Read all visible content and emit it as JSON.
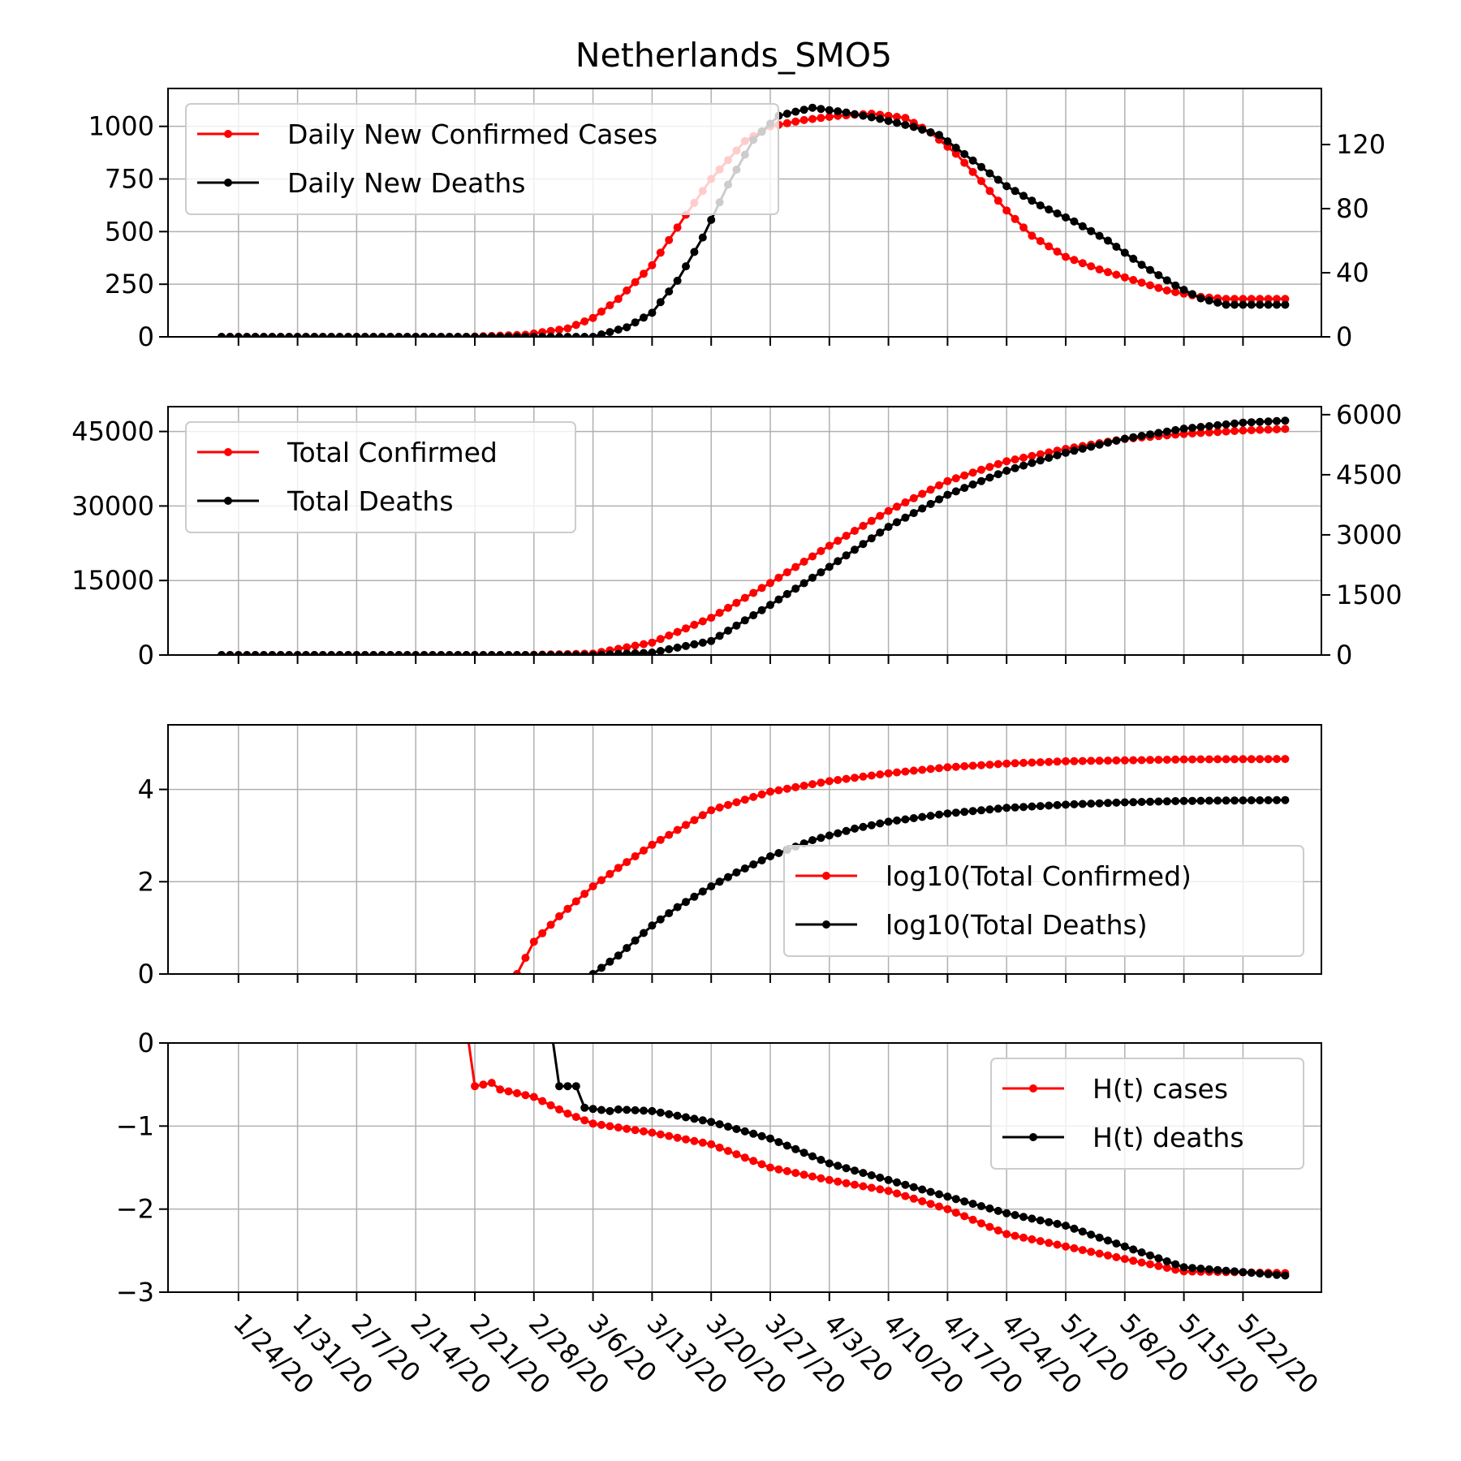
{
  "title": "Netherlands_SMO5",
  "colors": {
    "confirmed": "#ff0000",
    "deaths": "#000000",
    "grid": "#b0b0b0"
  },
  "x_axis": {
    "start_date": "1/22/20",
    "end_date": "5/27/20",
    "tick_labels": [
      "1/24/20",
      "1/31/20",
      "2/7/20",
      "2/14/20",
      "2/21/20",
      "2/28/20",
      "3/6/20",
      "3/13/20",
      "3/20/20",
      "3/27/20",
      "4/3/20",
      "4/10/20",
      "4/17/20",
      "4/24/20",
      "5/1/20",
      "5/8/20",
      "5/15/20",
      "5/22/20"
    ]
  },
  "chart_data": [
    {
      "type": "line",
      "panel": "daily",
      "legend": [
        "Daily New Confirmed Cases",
        "Daily New Deaths"
      ],
      "legend_position": "top-left",
      "grid": true,
      "y_left": {
        "range": [
          0,
          1180
        ],
        "ticks": [
          0,
          250,
          500,
          750,
          1000
        ],
        "tick_labels": [
          "0",
          "250",
          "500",
          "750",
          "1000"
        ]
      },
      "y_right": {
        "range": [
          0,
          155
        ],
        "ticks": [
          0,
          40,
          80,
          120
        ],
        "tick_labels": [
          "0",
          "40",
          "80",
          "120"
        ]
      },
      "series": [
        {
          "name": "Daily New Confirmed Cases",
          "axis": "left",
          "color": "#ff0000",
          "points": [
            [
              "1/22/20",
              0
            ],
            [
              "2/20/20",
              0
            ],
            [
              "2/27/20",
              10
            ],
            [
              "3/3/20",
              40
            ],
            [
              "3/6/20",
              90
            ],
            [
              "3/9/20",
              180
            ],
            [
              "3/13/20",
              340
            ],
            [
              "3/17/20",
              580
            ],
            [
              "3/20/20",
              750
            ],
            [
              "3/24/20",
              930
            ],
            [
              "3/27/20",
              1000
            ],
            [
              "3/31/20",
              1030
            ],
            [
              "4/4/20",
              1050
            ],
            [
              "4/8/20",
              1060
            ],
            [
              "4/12/20",
              1040
            ],
            [
              "4/15/20",
              970
            ],
            [
              "4/18/20",
              870
            ],
            [
              "4/21/20",
              740
            ],
            [
              "4/24/20",
              600
            ],
            [
              "4/27/20",
              480
            ],
            [
              "5/1/20",
              380
            ],
            [
              "5/5/20",
              320
            ],
            [
              "5/9/20",
              270
            ],
            [
              "5/13/20",
              220
            ],
            [
              "5/17/20",
              190
            ],
            [
              "5/20/20",
              180
            ],
            [
              "5/27/20",
              180
            ]
          ]
        },
        {
          "name": "Daily New Deaths",
          "axis": "right",
          "color": "#000000",
          "points": [
            [
              "1/22/20",
              0
            ],
            [
              "3/6/20",
              0
            ],
            [
              "3/10/20",
              6
            ],
            [
              "3/13/20",
              15
            ],
            [
              "3/16/20",
              35
            ],
            [
              "3/19/20",
              62
            ],
            [
              "3/22/20",
              95
            ],
            [
              "3/25/20",
              123
            ],
            [
              "3/28/20",
              138
            ],
            [
              "4/1/20",
              143
            ],
            [
              "4/5/20",
              140
            ],
            [
              "4/9/20",
              136
            ],
            [
              "4/13/20",
              131
            ],
            [
              "4/16/20",
              126
            ],
            [
              "4/20/20",
              110
            ],
            [
              "4/24/20",
              94
            ],
            [
              "4/28/20",
              82
            ],
            [
              "5/2/20",
              72
            ],
            [
              "5/6/20",
              60
            ],
            [
              "5/10/20",
              45
            ],
            [
              "5/14/20",
              32
            ],
            [
              "5/17/20",
              24
            ],
            [
              "5/20/20",
              20
            ],
            [
              "5/27/20",
              20
            ]
          ]
        }
      ]
    },
    {
      "type": "line",
      "panel": "total",
      "legend": [
        "Total Confirmed",
        "Total Deaths"
      ],
      "legend_position": "top-left",
      "grid": true,
      "y_left": {
        "range": [
          0,
          50000
        ],
        "ticks": [
          0,
          15000,
          30000,
          45000
        ],
        "tick_labels": [
          "0",
          "15000",
          "30000",
          "45000"
        ]
      },
      "y_right": {
        "range": [
          0,
          6200
        ],
        "ticks": [
          0,
          1500,
          3000,
          4500,
          6000
        ],
        "tick_labels": [
          "0",
          "1500",
          "3000",
          "4500",
          "6000"
        ]
      },
      "series": [
        {
          "name": "Total Confirmed",
          "axis": "left",
          "color": "#ff0000",
          "points": [
            [
              "1/22/20",
              0
            ],
            [
              "2/27/20",
              0
            ],
            [
              "3/6/20",
              300
            ],
            [
              "3/13/20",
              2500
            ],
            [
              "3/20/20",
              7500
            ],
            [
              "3/27/20",
              14500
            ],
            [
              "4/3/20",
              22000
            ],
            [
              "4/10/20",
              29000
            ],
            [
              "4/17/20",
              35000
            ],
            [
              "4/24/20",
              39000
            ],
            [
              "5/1/20",
              41500
            ],
            [
              "5/8/20",
              43500
            ],
            [
              "5/15/20",
              44500
            ],
            [
              "5/22/20",
              45200
            ],
            [
              "5/27/20",
              45500
            ]
          ]
        },
        {
          "name": "Total Deaths",
          "axis": "right",
          "color": "#000000",
          "points": [
            [
              "1/22/20",
              0
            ],
            [
              "3/6/20",
              0
            ],
            [
              "3/13/20",
              60
            ],
            [
              "3/20/20",
              350
            ],
            [
              "3/27/20",
              1250
            ],
            [
              "4/3/20",
              2200
            ],
            [
              "4/10/20",
              3200
            ],
            [
              "4/17/20",
              4000
            ],
            [
              "4/24/20",
              4600
            ],
            [
              "5/1/20",
              5050
            ],
            [
              "5/8/20",
              5400
            ],
            [
              "5/15/20",
              5650
            ],
            [
              "5/22/20",
              5800
            ],
            [
              "5/27/20",
              5850
            ]
          ]
        }
      ]
    },
    {
      "type": "line",
      "panel": "log",
      "legend": [
        "log10(Total Confirmed)",
        "log10(Total Deaths)"
      ],
      "legend_position": "lower-right",
      "grid": true,
      "y_left": {
        "range": [
          0,
          5.4
        ],
        "ticks": [
          0,
          2,
          4
        ],
        "tick_labels": [
          "0",
          "2",
          "4"
        ]
      },
      "series": [
        {
          "name": "log10(Total Confirmed)",
          "axis": "left",
          "color": "#ff0000",
          "points": [
            [
              "2/26/20",
              0
            ],
            [
              "2/28/20",
              0.7
            ],
            [
              "3/2/20",
              1.25
            ],
            [
              "3/6/20",
              1.9
            ],
            [
              "3/9/20",
              2.3
            ],
            [
              "3/13/20",
              2.8
            ],
            [
              "3/20/20",
              3.55
            ],
            [
              "3/27/20",
              3.95
            ],
            [
              "4/3/20",
              4.18
            ],
            [
              "4/10/20",
              4.35
            ],
            [
              "4/17/20",
              4.48
            ],
            [
              "4/24/20",
              4.56
            ],
            [
              "5/1/20",
              4.61
            ],
            [
              "5/8/20",
              4.63
            ],
            [
              "5/15/20",
              4.65
            ],
            [
              "5/27/20",
              4.66
            ]
          ]
        },
        {
          "name": "log10(Total Deaths)",
          "axis": "left",
          "color": "#000000",
          "points": [
            [
              "3/6/20",
              0
            ],
            [
              "3/9/20",
              0.4
            ],
            [
              "3/13/20",
              1.05
            ],
            [
              "3/16/20",
              1.45
            ],
            [
              "3/20/20",
              1.9
            ],
            [
              "3/23/20",
              2.2
            ],
            [
              "3/27/20",
              2.55
            ],
            [
              "4/1/20",
              2.9
            ],
            [
              "4/6/20",
              3.15
            ],
            [
              "4/10/20",
              3.3
            ],
            [
              "4/17/20",
              3.48
            ],
            [
              "4/24/20",
              3.6
            ],
            [
              "5/1/20",
              3.67
            ],
            [
              "5/8/20",
              3.72
            ],
            [
              "5/15/20",
              3.75
            ],
            [
              "5/27/20",
              3.77
            ]
          ]
        }
      ]
    },
    {
      "type": "line",
      "panel": "H",
      "legend": [
        "H(t) cases",
        "H(t) deaths"
      ],
      "legend_position": "upper-right",
      "grid": true,
      "y_left": {
        "range": [
          -3,
          0
        ],
        "ticks": [
          -3,
          -2,
          -1,
          0
        ],
        "tick_labels": [
          "−3",
          "−2",
          "−1",
          "0"
        ]
      },
      "series": [
        {
          "name": "H(t) cases",
          "axis": "left",
          "color": "#ff0000",
          "points": [
            [
              "2/20/20",
              0.2
            ],
            [
              "2/21/20",
              -0.52
            ],
            [
              "2/22/20",
              -0.5
            ],
            [
              "2/23/20",
              -0.48
            ],
            [
              "2/24/20",
              -0.56
            ],
            [
              "2/28/20",
              -0.65
            ],
            [
              "3/3/20",
              -0.85
            ],
            [
              "3/6/20",
              -0.97
            ],
            [
              "3/13/20",
              -1.08
            ],
            [
              "3/20/20",
              -1.22
            ],
            [
              "3/27/20",
              -1.5
            ],
            [
              "4/3/20",
              -1.65
            ],
            [
              "4/10/20",
              -1.78
            ],
            [
              "4/17/20",
              -2.0
            ],
            [
              "4/24/20",
              -2.3
            ],
            [
              "5/1/20",
              -2.45
            ],
            [
              "5/8/20",
              -2.6
            ],
            [
              "5/15/20",
              -2.75
            ],
            [
              "5/27/20",
              -2.77
            ]
          ]
        },
        {
          "name": "H(t) deaths",
          "axis": "left",
          "color": "#000000",
          "points": [
            [
              "3/1/20",
              0.2
            ],
            [
              "3/2/20",
              -0.52
            ],
            [
              "3/4/20",
              -0.52
            ],
            [
              "3/5/20",
              -0.78
            ],
            [
              "3/8/20",
              -0.82
            ],
            [
              "3/9/20",
              -0.8
            ],
            [
              "3/13/20",
              -0.82
            ],
            [
              "3/20/20",
              -0.95
            ],
            [
              "3/27/20",
              -1.15
            ],
            [
              "4/3/20",
              -1.45
            ],
            [
              "4/10/20",
              -1.65
            ],
            [
              "4/17/20",
              -1.85
            ],
            [
              "4/24/20",
              -2.05
            ],
            [
              "5/1/20",
              -2.2
            ],
            [
              "5/8/20",
              -2.45
            ],
            [
              "5/15/20",
              -2.7
            ],
            [
              "5/27/20",
              -2.8
            ]
          ]
        }
      ]
    }
  ]
}
